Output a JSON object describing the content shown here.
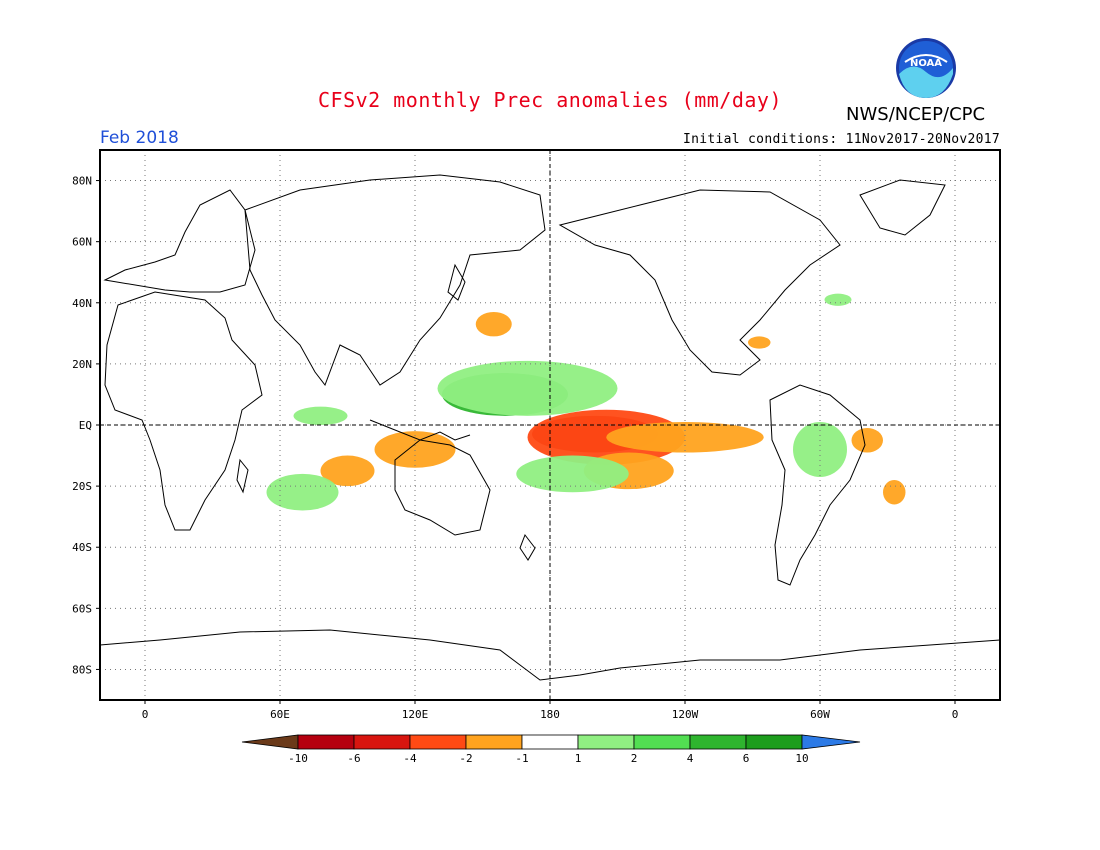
{
  "header": {
    "title": "CFSv2 monthly Prec anomalies (mm/day)",
    "agency": "NWS/NCEP/CPC",
    "logo_text": "NOAA",
    "month": "Feb 2018",
    "initial_conditions": "Initial conditions: 11Nov2017-20Nov2017"
  },
  "map": {
    "lat_labels": [
      "80N",
      "60N",
      "40N",
      "20N",
      "EQ",
      "20S",
      "40S",
      "60S",
      "80S"
    ],
    "lat_values": [
      80,
      60,
      40,
      20,
      0,
      -20,
      -40,
      -60,
      -80
    ],
    "lon_labels": [
      "0",
      "60E",
      "120E",
      "180",
      "120W",
      "60W",
      "0"
    ],
    "lon_values": [
      0,
      60,
      120,
      180,
      240,
      300,
      360
    ],
    "lon_range": [
      -20,
      380
    ],
    "lat_range": [
      -90,
      90
    ],
    "equator_line": "dashed",
    "dateline_line": "dashed",
    "grid": "dotted"
  },
  "colorbar": {
    "tick_labels": [
      "-10",
      "-6",
      "-4",
      "-2",
      "-1",
      "1",
      "2",
      "4",
      "6",
      "10"
    ],
    "colors": [
      "#6b3a1a",
      "#b5000f",
      "#d8150f",
      "#ff4a14",
      "#ffa31f",
      "#ffffff",
      "#90ef82",
      "#52de52",
      "#2eb52e",
      "#1c9d1c",
      "#2c7ae6"
    ]
  },
  "anomaly_regions": [
    {
      "name": "central-pacific-dry-core",
      "lon": 200,
      "lat": -3,
      "rx": 28,
      "ry": 6,
      "level": -6
    },
    {
      "name": "central-pacific-dry",
      "lon": 205,
      "lat": -4,
      "rx": 35,
      "ry": 9,
      "level": -4
    },
    {
      "name": "equatorial-pacific-dry-tongue",
      "lon": 240,
      "lat": -4,
      "rx": 35,
      "ry": 5,
      "level": -2
    },
    {
      "name": "pacific-dry-band-south",
      "lon": 215,
      "lat": -15,
      "rx": 20,
      "ry": 6,
      "level": -2
    },
    {
      "name": "western-pacific-wet",
      "lon": 160,
      "lat": 10,
      "rx": 28,
      "ry": 7,
      "level": 4
    },
    {
      "name": "western-pacific-wet-outer",
      "lon": 170,
      "lat": 12,
      "rx": 40,
      "ry": 9,
      "level": 2
    },
    {
      "name": "spcz-wet",
      "lon": 190,
      "lat": -16,
      "rx": 25,
      "ry": 6,
      "level": 2
    },
    {
      "name": "maritime-continent-dry",
      "lon": 120,
      "lat": -8,
      "rx": 18,
      "ry": 6,
      "level": -2
    },
    {
      "name": "indian-ocean-dry",
      "lon": 90,
      "lat": -15,
      "rx": 12,
      "ry": 5,
      "level": -2
    },
    {
      "name": "indian-ocean-wet",
      "lon": 78,
      "lat": 3,
      "rx": 12,
      "ry": 3,
      "level": 2
    },
    {
      "name": "south-indian-wet",
      "lon": 70,
      "lat": -22,
      "rx": 16,
      "ry": 6,
      "level": 2
    },
    {
      "name": "amazon-wet",
      "lon": 300,
      "lat": -8,
      "rx": 12,
      "ry": 9,
      "level": 2
    },
    {
      "name": "northeast-brazil-dry",
      "lon": 321,
      "lat": -5,
      "rx": 7,
      "ry": 4,
      "level": -2
    },
    {
      "name": "south-atlantic-dry",
      "lon": 333,
      "lat": -22,
      "rx": 5,
      "ry": 4,
      "level": -2
    },
    {
      "name": "north-pacific-dry",
      "lon": 155,
      "lat": 33,
      "rx": 8,
      "ry": 4,
      "level": -2
    },
    {
      "name": "gulf-dry",
      "lon": 273,
      "lat": 27,
      "rx": 5,
      "ry": 2,
      "level": -2
    },
    {
      "name": "atlantic-wet",
      "lon": 308,
      "lat": 41,
      "rx": 6,
      "ry": 2,
      "level": 2
    }
  ]
}
